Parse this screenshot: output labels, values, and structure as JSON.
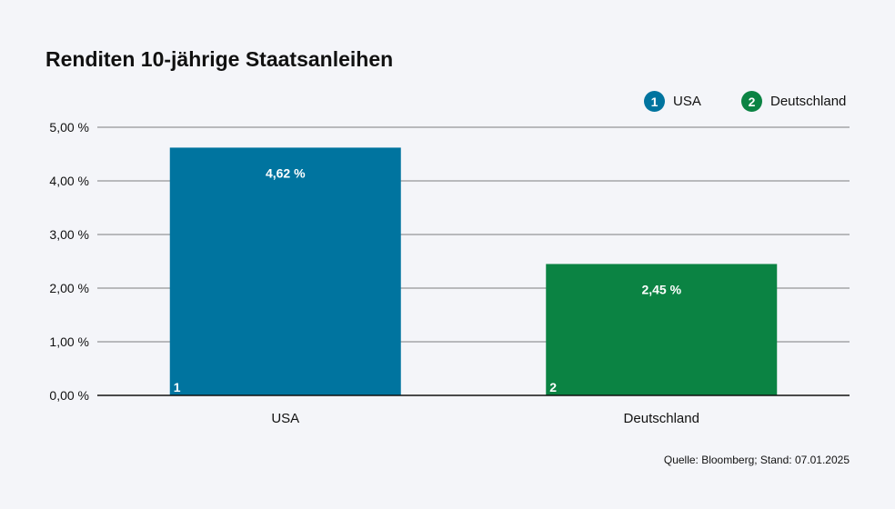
{
  "chart_data": {
    "type": "bar",
    "title": "Renditen 10-jährige Staatsanleihen",
    "categories": [
      "USA",
      "Deutschland"
    ],
    "values": [
      4.62,
      2.45
    ],
    "value_labels": [
      "4,62 %",
      "2,45 %"
    ],
    "bar_numbers": [
      "1",
      "2"
    ],
    "colors": [
      "#00749f",
      "#0b8343"
    ],
    "ylim": [
      0,
      5
    ],
    "yticks": [
      0,
      1,
      2,
      3,
      4,
      5
    ],
    "ytick_labels": [
      "0,00 %",
      "1,00 %",
      "2,00 %",
      "3,00 %",
      "4,00 %",
      "5,00 %"
    ],
    "grid": true,
    "legend": {
      "placement": "top-right",
      "items": [
        {
          "number": "1",
          "label": "USA",
          "color": "#00749f"
        },
        {
          "number": "2",
          "label": "Deutschland",
          "color": "#0b8343"
        }
      ]
    },
    "source": "Quelle: Bloomberg; Stand: 07.01.2025"
  }
}
